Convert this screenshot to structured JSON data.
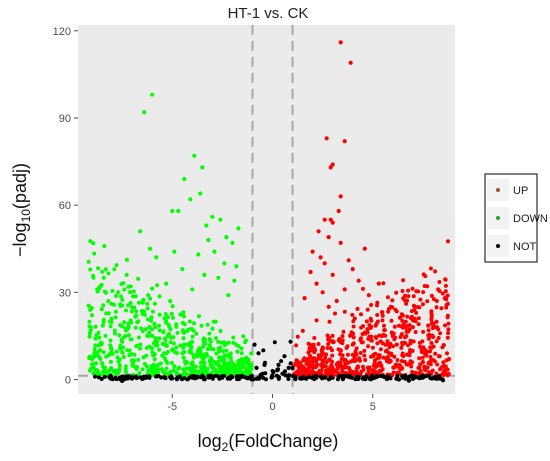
{
  "chart_data": {
    "type": "scatter",
    "title": "HT-1 vs. CK",
    "xlabel": {
      "base": "log",
      "sub": "2",
      "rest": "(FoldChange)"
    },
    "ylabel": {
      "base": "−log",
      "sub": "10",
      "rest": "(padj)"
    },
    "xlim": [
      -9.7,
      9.1
    ],
    "ylim": [
      -5,
      122
    ],
    "x_ticks": [
      -5,
      0,
      5
    ],
    "x_tick_labels": [
      "-5",
      "0",
      "5"
    ],
    "y_ticks": [
      0,
      30,
      60,
      90,
      120
    ],
    "y_tick_labels": [
      "0",
      "30",
      "60",
      "90",
      "120"
    ],
    "thresholds": {
      "log2fc": [
        -1,
        1
      ],
      "neg_log10_padj": 1.3
    },
    "grid": false,
    "background": "#ebebeb",
    "legend": {
      "placement": "right",
      "entries": [
        {
          "label": "UP",
          "color": "#a0522d"
        },
        {
          "label": "DOWN",
          "color": "#2ca02c"
        },
        {
          "label": "NOT",
          "color": "#000000"
        }
      ]
    },
    "series": [
      {
        "name": "UP",
        "color": "#ff0000",
        "points": [
          [
            3.4,
            116
          ],
          [
            3.9,
            109
          ],
          [
            2.7,
            83
          ],
          [
            3.6,
            82
          ],
          [
            3.0,
            74
          ],
          [
            2.9,
            73
          ],
          [
            3.4,
            63
          ],
          [
            3.3,
            58
          ],
          [
            2.6,
            55
          ],
          [
            2.9,
            55
          ],
          [
            3.0,
            54
          ],
          [
            2.3,
            51
          ],
          [
            2.8,
            49
          ],
          [
            3.4,
            47
          ],
          [
            4.6,
            45
          ],
          [
            2.0,
            44
          ],
          [
            2.4,
            42
          ],
          [
            3.8,
            41
          ],
          [
            2.6,
            40
          ],
          [
            4.0,
            38
          ],
          [
            1.9,
            37
          ],
          [
            3.0,
            36
          ],
          [
            4.3,
            34
          ],
          [
            2.2,
            33
          ],
          [
            5.3,
            33
          ],
          [
            3.6,
            31
          ],
          [
            2.5,
            30
          ],
          [
            4.8,
            29
          ],
          [
            1.6,
            28
          ],
          [
            3.2,
            27
          ],
          [
            5.9,
            25
          ],
          [
            2.8,
            25
          ],
          [
            6.5,
            22
          ],
          [
            4.1,
            21
          ],
          [
            7.0,
            18
          ],
          [
            5.6,
            17
          ],
          [
            7.8,
            14
          ],
          [
            6.2,
            12
          ],
          [
            8.7,
            9
          ],
          [
            8.3,
            8
          ],
          [
            7.5,
            6
          ],
          [
            8.8,
            7
          ]
        ]
      },
      {
        "name": "DOWN",
        "color": "#00ff00",
        "points": [
          [
            -6.0,
            98
          ],
          [
            -6.4,
            92
          ],
          [
            -3.9,
            77
          ],
          [
            -4.4,
            69
          ],
          [
            -3.5,
            73
          ],
          [
            -3.6,
            64
          ],
          [
            -4.1,
            62
          ],
          [
            -5.0,
            58
          ],
          [
            -4.7,
            58
          ],
          [
            -3.0,
            56
          ],
          [
            -2.6,
            55
          ],
          [
            -6.6,
            51
          ],
          [
            -3.3,
            53
          ],
          [
            -1.7,
            52
          ],
          [
            -2.3,
            49
          ],
          [
            -6.1,
            45
          ],
          [
            -4.9,
            44
          ],
          [
            -2.9,
            44
          ],
          [
            -3.2,
            48
          ],
          [
            -2.0,
            47
          ],
          [
            -3.7,
            43
          ],
          [
            -5.8,
            42
          ],
          [
            -2.4,
            40
          ],
          [
            -1.8,
            39
          ],
          [
            -4.5,
            38
          ],
          [
            -3.4,
            36
          ],
          [
            -2.7,
            35
          ],
          [
            -5.3,
            33
          ],
          [
            -1.9,
            34
          ],
          [
            -7.7,
            30
          ],
          [
            -4.0,
            31
          ],
          [
            -6.2,
            29
          ],
          [
            -2.2,
            29
          ],
          [
            -5.1,
            27
          ],
          [
            -8.1,
            20
          ],
          [
            -7.2,
            18
          ],
          [
            -6.8,
            22
          ],
          [
            -8.6,
            10
          ],
          [
            -9.0,
            7
          ],
          [
            -7.5,
            13
          ],
          [
            -6.0,
            15
          ],
          [
            -4.8,
            19
          ]
        ]
      },
      {
        "name": "NOT",
        "color": "#000000",
        "points": [
          [
            -0.9,
            12
          ],
          [
            0.9,
            13
          ],
          [
            -0.7,
            9
          ],
          [
            0.6,
            8
          ],
          [
            -0.4,
            5
          ],
          [
            0.3,
            5
          ],
          [
            -0.8,
            4
          ],
          [
            0.8,
            4
          ],
          [
            -0.5,
            2
          ],
          [
            0.5,
            2
          ],
          [
            0.0,
            1
          ],
          [
            -1.5,
            1
          ],
          [
            1.5,
            1
          ],
          [
            -3.0,
            0.6
          ],
          [
            3.0,
            0.6
          ],
          [
            -5.0,
            0.4
          ],
          [
            5.0,
            0.4
          ],
          [
            -7.0,
            0.3
          ],
          [
            7.0,
            0.2
          ],
          [
            -7.5,
            -0.5
          ],
          [
            6.8,
            -0.4
          ],
          [
            8.5,
            -0.3
          ],
          [
            -6.5,
            0.2
          ],
          [
            4.5,
            0.3
          ]
        ]
      }
    ]
  }
}
